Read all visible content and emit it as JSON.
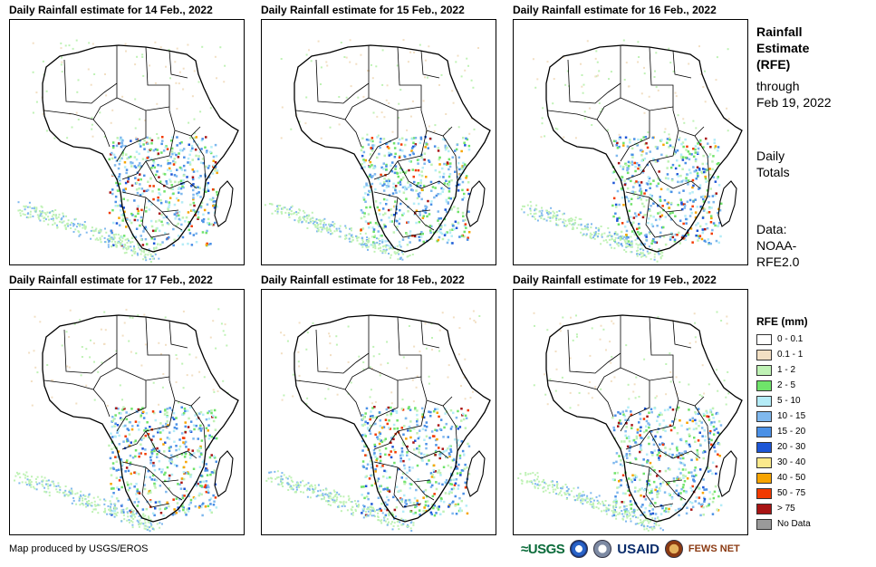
{
  "panels": [
    {
      "title": "Daily Rainfall estimate for 14 Feb., 2022"
    },
    {
      "title": "Daily Rainfall estimate for 15 Feb., 2022"
    },
    {
      "title": "Daily Rainfall estimate for 16 Feb., 2022"
    },
    {
      "title": "Daily Rainfall estimate for 17 Feb., 2022"
    },
    {
      "title": "Daily Rainfall estimate for 18 Feb., 2022"
    },
    {
      "title": "Daily Rainfall estimate for 19 Feb., 2022"
    }
  ],
  "side_info": {
    "title_lines": [
      "Rainfall",
      "Estimate",
      "(RFE)"
    ],
    "through_lines": [
      "through",
      "Feb 19, 2022"
    ],
    "totals_lines": [
      "Daily",
      "Totals"
    ],
    "data_lines": [
      "Data:",
      "NOAA-",
      "RFE2.0"
    ]
  },
  "legend": {
    "title": "RFE (mm)",
    "items": [
      {
        "label": "0 - 0.1",
        "color": "#ffffff"
      },
      {
        "label": "0.1 - 1",
        "color": "#f2dfc3"
      },
      {
        "label": "1 - 2",
        "color": "#bff2b5"
      },
      {
        "label": "2 - 5",
        "color": "#6fe36a"
      },
      {
        "label": "5 - 10",
        "color": "#b4ecf7"
      },
      {
        "label": "10 - 15",
        "color": "#7fb8ee"
      },
      {
        "label": "15 - 20",
        "color": "#4a90e6"
      },
      {
        "label": "20 - 30",
        "color": "#1d56d6"
      },
      {
        "label": "30 - 40",
        "color": "#fbe98b"
      },
      {
        "label": "40 - 50",
        "color": "#f7a400"
      },
      {
        "label": "50 - 75",
        "color": "#f23a00"
      },
      {
        "label": "> 75",
        "color": "#a81414"
      },
      {
        "label": "No Data",
        "color": "#9a9a9a"
      }
    ]
  },
  "footer": {
    "credit": "Map produced by USGS/EROS",
    "logos": {
      "usgs": "≈USGS",
      "usaid": "USAID",
      "fews": "FEWS NET"
    }
  }
}
